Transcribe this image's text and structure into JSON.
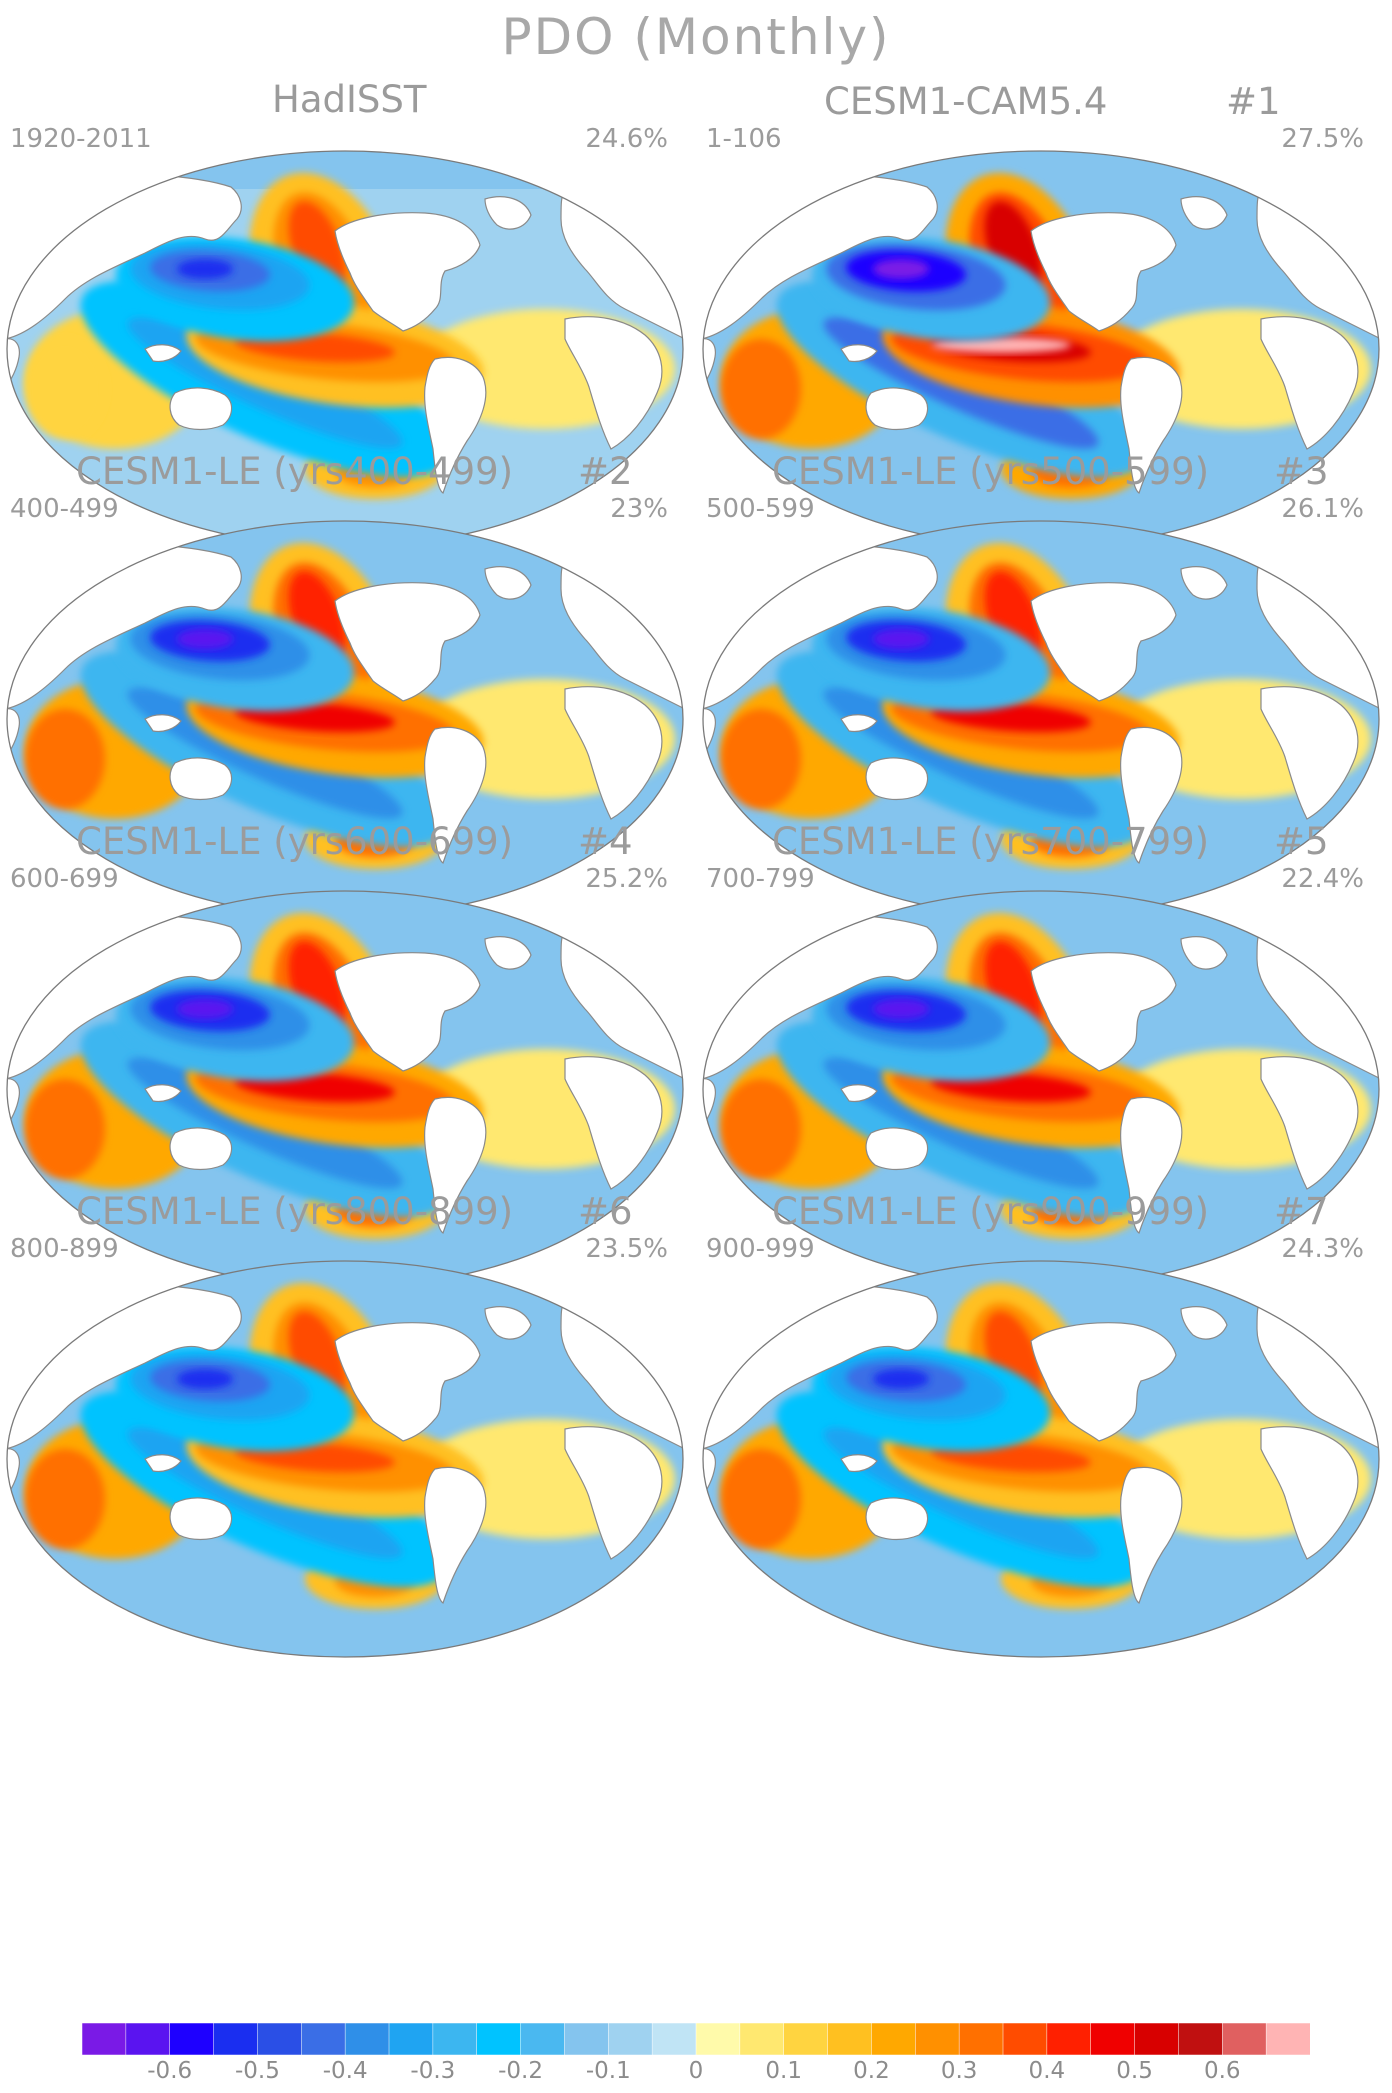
{
  "title": "PDO (Monthly)",
  "panels": [
    {
      "name": "HadISST",
      "number": "",
      "years": "1920-2011",
      "variance": "24.6%",
      "style": "obs"
    },
    {
      "name": "CESM1-CAM5.4",
      "number": "#1",
      "years": "1-106",
      "variance": "27.5%",
      "style": "strong"
    },
    {
      "name": "CESM1-LE (yrs400-499)",
      "number": "#2",
      "years": "400-499",
      "variance": "23%",
      "style": "model"
    },
    {
      "name": "CESM1-LE (yrs500-599)",
      "number": "#3",
      "years": "500-599",
      "variance": "26.1%",
      "style": "model"
    },
    {
      "name": "CESM1-LE (yrs600-699)",
      "number": "#4",
      "years": "600-699",
      "variance": "25.2%",
      "style": "model"
    },
    {
      "name": "CESM1-LE (yrs700-799)",
      "number": "#5",
      "years": "700-799",
      "variance": "22.4%",
      "style": "model"
    },
    {
      "name": "CESM1-LE (yrs800-899)",
      "number": "#6",
      "years": "800-899",
      "variance": "23.5%",
      "style": "weak"
    },
    {
      "name": "CESM1-LE (yrs900-999)",
      "number": "#7",
      "years": "900-999",
      "variance": "24.3%",
      "style": "weak"
    }
  ],
  "colorbar": {
    "colors": [
      "#7a1ae6",
      "#5a14f0",
      "#1e00ff",
      "#1a2ef0",
      "#2a4fe6",
      "#3a6ee6",
      "#2f8fe8",
      "#1fa4f2",
      "#3cb6f0",
      "#00c3ff",
      "#4ab8f0",
      "#84c4ee",
      "#9fd2f0",
      "#c0e4f5",
      "#fffaaa",
      "#ffe870",
      "#ffd440",
      "#ffc020",
      "#ffa800",
      "#ff9000",
      "#ff7000",
      "#ff4c00",
      "#ff2000",
      "#f00000",
      "#d80000",
      "#c01010",
      "#e06060",
      "#ffb4b4"
    ],
    "tick_labels": [
      "-0.6",
      "-0.5",
      "-0.4",
      "-0.3",
      "-0.2",
      "-0.1",
      "0",
      "0.1",
      "0.2",
      "0.3",
      "0.4",
      "0.5",
      "0.6"
    ],
    "tick_values": [
      -0.6,
      -0.5,
      -0.4,
      -0.3,
      -0.2,
      -0.1,
      0,
      0.1,
      0.2,
      0.3,
      0.4,
      0.5,
      0.6
    ],
    "range": [
      -0.7,
      0.7
    ]
  }
}
